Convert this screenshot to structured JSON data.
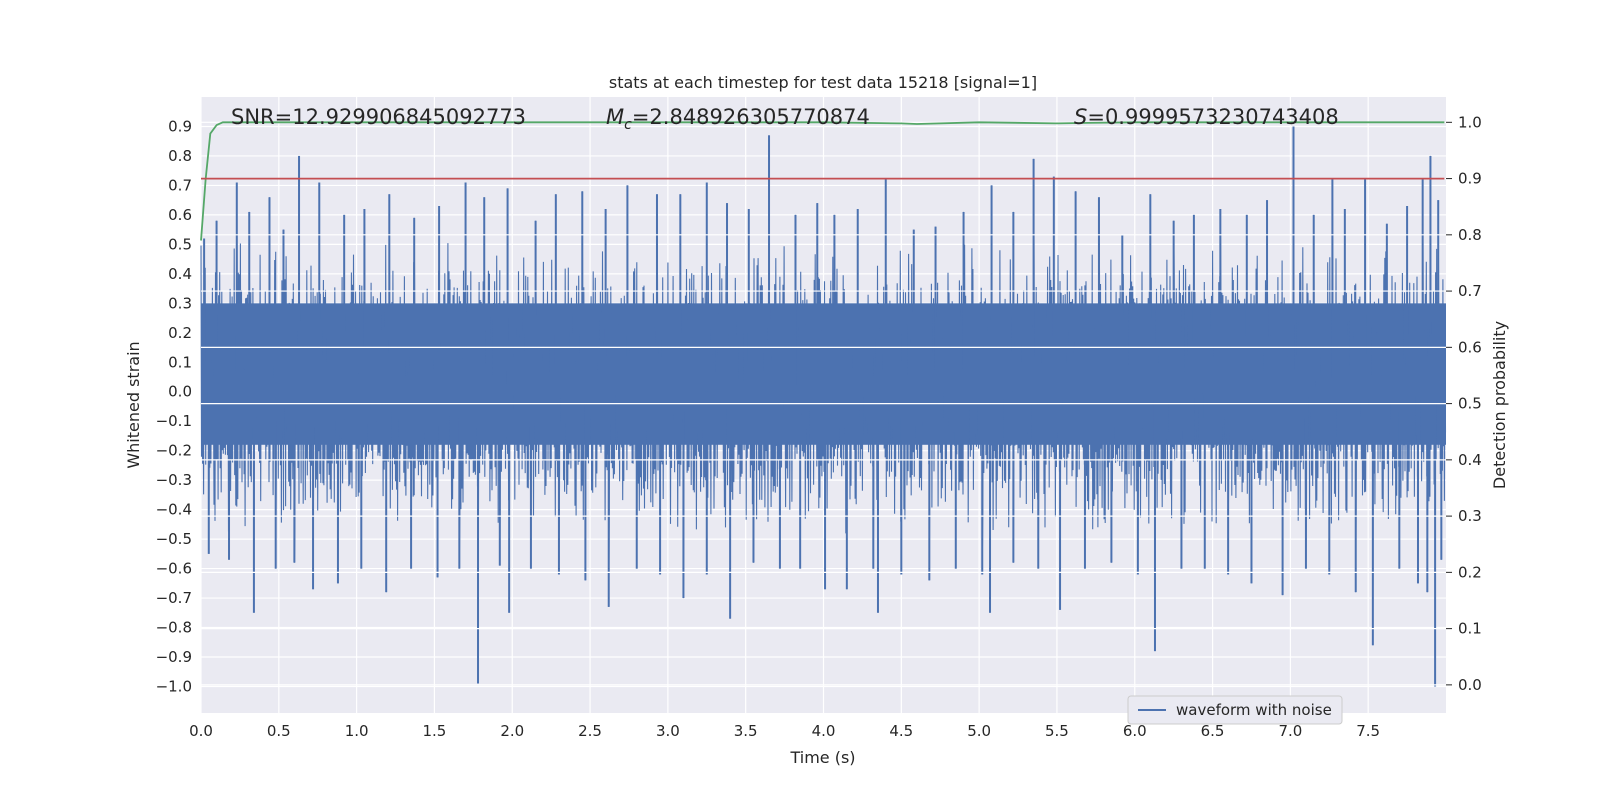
{
  "chart_data": {
    "type": "line",
    "title": "stats at each timestep for test data 15218 [signal=1]",
    "xlabel": "Time (s)",
    "ylabel": "Whitened strain",
    "y2label": "Detection probability",
    "xlim": [
      0.0,
      8.0
    ],
    "ylim": [
      -1.09,
      1.0
    ],
    "y2lim": [
      -0.05,
      1.045
    ],
    "xticks": [
      "0.0",
      "0.5",
      "1.0",
      "1.5",
      "2.0",
      "2.5",
      "3.0",
      "3.5",
      "4.0",
      "4.5",
      "5.0",
      "5.5",
      "6.0",
      "6.5",
      "7.0",
      "7.5"
    ],
    "xtick_values": [
      0.0,
      0.5,
      1.0,
      1.5,
      2.0,
      2.5,
      3.0,
      3.5,
      4.0,
      4.5,
      5.0,
      5.5,
      6.0,
      6.5,
      7.0,
      7.5
    ],
    "yticks": [
      "0.9",
      "0.8",
      "0.7",
      "0.6",
      "0.5",
      "0.4",
      "0.3",
      "0.2",
      "0.1",
      "0.0",
      "−0.1",
      "−0.2",
      "−0.3",
      "−0.4",
      "−0.5",
      "−0.6",
      "−0.7",
      "−0.8",
      "−0.9",
      "−1.0"
    ],
    "ytick_values": [
      0.9,
      0.8,
      0.7,
      0.6,
      0.5,
      0.4,
      0.3,
      0.2,
      0.1,
      0.0,
      -0.1,
      -0.2,
      -0.3,
      -0.4,
      -0.5,
      -0.6,
      -0.7,
      -0.8,
      -0.9,
      -1.0
    ],
    "y2ticks": [
      "1.0",
      "0.9",
      "0.8",
      "0.7",
      "0.6",
      "0.5",
      "0.4",
      "0.3",
      "0.2",
      "0.1",
      "0.0"
    ],
    "y2tick_values": [
      1.0,
      0.9,
      0.8,
      0.7,
      0.6,
      0.5,
      0.4,
      0.3,
      0.2,
      0.1,
      0.0
    ],
    "annotations": {
      "snr": "SNR=12.929906845092773",
      "mc_symbol": "M",
      "mc_subscript": "c",
      "mc_value": "=2.848926305770874",
      "s_symbol": "S",
      "s_value": "=0.9999573230743408"
    },
    "legend": {
      "label": "waveform with noise",
      "placement": "lower-right"
    },
    "waveform": {
      "name": "waveform with noise",
      "color": "#4c72b0",
      "core_band": [
        -0.18,
        0.3
      ],
      "peaks_up": [
        [
          0.02,
          0.52
        ],
        [
          0.1,
          0.58
        ],
        [
          0.23,
          0.71
        ],
        [
          0.31,
          0.61
        ],
        [
          0.44,
          0.66
        ],
        [
          0.53,
          0.55
        ],
        [
          0.63,
          0.8
        ],
        [
          0.76,
          0.71
        ],
        [
          0.92,
          0.6
        ],
        [
          1.05,
          0.62
        ],
        [
          1.21,
          0.67
        ],
        [
          1.37,
          0.59
        ],
        [
          1.53,
          0.63
        ],
        [
          1.7,
          0.71
        ],
        [
          1.82,
          0.66
        ],
        [
          1.97,
          0.69
        ],
        [
          2.15,
          0.58
        ],
        [
          2.28,
          0.67
        ],
        [
          2.45,
          0.68
        ],
        [
          2.6,
          0.62
        ],
        [
          2.74,
          0.7
        ],
        [
          2.93,
          0.67
        ],
        [
          3.08,
          0.67
        ],
        [
          3.25,
          0.71
        ],
        [
          3.38,
          0.64
        ],
        [
          3.65,
          0.87
        ],
        [
          3.52,
          0.62
        ],
        [
          3.82,
          0.6
        ],
        [
          3.96,
          0.64
        ],
        [
          4.07,
          0.6
        ],
        [
          4.22,
          0.62
        ],
        [
          4.4,
          0.72
        ],
        [
          4.58,
          0.55
        ],
        [
          4.72,
          0.56
        ],
        [
          4.9,
          0.61
        ],
        [
          5.08,
          0.7
        ],
        [
          5.22,
          0.61
        ],
        [
          5.35,
          0.79
        ],
        [
          5.48,
          0.73
        ],
        [
          5.62,
          0.68
        ],
        [
          5.77,
          0.66
        ],
        [
          5.92,
          0.53
        ],
        [
          6.1,
          0.67
        ],
        [
          6.25,
          0.58
        ],
        [
          6.38,
          0.6
        ],
        [
          6.55,
          0.62
        ],
        [
          6.72,
          0.6
        ],
        [
          6.85,
          0.65
        ],
        [
          7.02,
          0.9
        ],
        [
          7.15,
          0.6
        ],
        [
          7.27,
          0.72
        ],
        [
          7.35,
          0.62
        ],
        [
          7.48,
          0.72
        ],
        [
          7.62,
          0.57
        ],
        [
          7.75,
          0.63
        ],
        [
          7.85,
          0.72
        ],
        [
          7.9,
          0.8
        ],
        [
          7.95,
          0.65
        ]
      ],
      "peaks_down": [
        [
          0.05,
          -0.55
        ],
        [
          0.18,
          -0.57
        ],
        [
          0.34,
          -0.75
        ],
        [
          0.48,
          -0.6
        ],
        [
          0.6,
          -0.58
        ],
        [
          0.72,
          -0.67
        ],
        [
          0.88,
          -0.65
        ],
        [
          1.03,
          -0.6
        ],
        [
          1.19,
          -0.68
        ],
        [
          1.35,
          -0.6
        ],
        [
          1.52,
          -0.63
        ],
        [
          1.66,
          -0.6
        ],
        [
          1.78,
          -0.99
        ],
        [
          1.92,
          -0.59
        ],
        [
          1.98,
          -0.75
        ],
        [
          2.12,
          -0.6
        ],
        [
          2.3,
          -0.62
        ],
        [
          2.47,
          -0.64
        ],
        [
          2.62,
          -0.73
        ],
        [
          2.8,
          -0.6
        ],
        [
          2.95,
          -0.62
        ],
        [
          3.1,
          -0.7
        ],
        [
          3.25,
          -0.62
        ],
        [
          3.4,
          -0.77
        ],
        [
          3.55,
          -0.58
        ],
        [
          3.72,
          -0.6
        ],
        [
          3.85,
          -0.6
        ],
        [
          4.01,
          -0.67
        ],
        [
          4.15,
          -0.67
        ],
        [
          4.32,
          -0.6
        ],
        [
          4.35,
          -0.75
        ],
        [
          4.5,
          -0.62
        ],
        [
          4.68,
          -0.64
        ],
        [
          4.85,
          -0.6
        ],
        [
          5.02,
          -0.62
        ],
        [
          5.07,
          -0.75
        ],
        [
          5.22,
          -0.58
        ],
        [
          5.38,
          -0.6
        ],
        [
          5.52,
          -0.74
        ],
        [
          5.68,
          -0.6
        ],
        [
          5.85,
          -0.58
        ],
        [
          6.02,
          -0.62
        ],
        [
          6.13,
          -0.88
        ],
        [
          6.3,
          -0.6
        ],
        [
          6.45,
          -0.6
        ],
        [
          6.6,
          -0.62
        ],
        [
          6.75,
          -0.65
        ],
        [
          6.95,
          -0.69
        ],
        [
          7.1,
          -0.6
        ],
        [
          7.25,
          -0.62
        ],
        [
          7.42,
          -0.68
        ],
        [
          7.53,
          -0.86
        ],
        [
          7.7,
          -0.6
        ],
        [
          7.82,
          -0.65
        ],
        [
          7.88,
          -0.68
        ],
        [
          7.93,
          -1.0
        ],
        [
          7.97,
          -0.57
        ]
      ]
    },
    "series": [
      {
        "name": "detection probability",
        "axis": "right",
        "color": "#55a868",
        "x": [
          0.0,
          0.03,
          0.06,
          0.1,
          0.14,
          0.5,
          1.0,
          2.0,
          3.0,
          4.0,
          4.5,
          4.6,
          5.0,
          5.5,
          5.7,
          6.0,
          7.0,
          7.99
        ],
        "values": [
          0.79,
          0.9,
          0.98,
          0.995,
          1.0,
          1.0,
          1.0,
          1.0,
          1.0,
          1.0,
          0.998,
          0.997,
          1.0,
          0.998,
          0.999,
          1.0,
          1.0,
          1.0
        ]
      },
      {
        "name": "threshold",
        "axis": "right",
        "color": "#c44e52",
        "x": [
          0.0,
          7.99
        ],
        "values": [
          0.9,
          0.9
        ]
      }
    ],
    "grid": true
  }
}
